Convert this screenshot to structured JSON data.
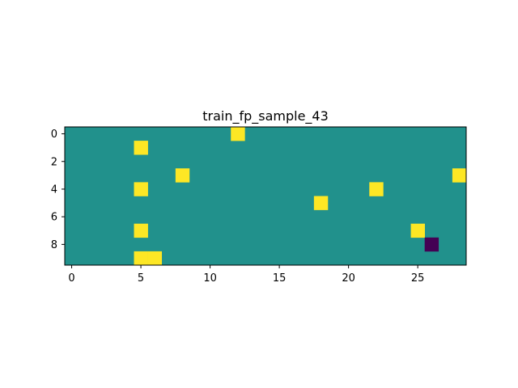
{
  "chart_data": {
    "type": "heatmap",
    "title": "train_fp_sample_43",
    "xlabel": "",
    "ylabel": "",
    "rows": 10,
    "cols": 29,
    "xlim": [
      -0.5,
      28.5
    ],
    "ylim": [
      9.5,
      -0.5
    ],
    "x_ticks": [
      0,
      5,
      10,
      15,
      20,
      25
    ],
    "y_ticks": [
      0,
      2,
      4,
      6,
      8
    ],
    "x_tick_labels": [
      "0",
      "5",
      "10",
      "15",
      "20",
      "25"
    ],
    "y_tick_labels": [
      "0",
      "2",
      "4",
      "6",
      "8"
    ],
    "grid": false,
    "colormap": "viridis",
    "background_value": 0,
    "colors": {
      "-1": "#440154",
      "0": "#21918c",
      "1": "#fde725"
    },
    "cells": [
      {
        "row": 0,
        "col": 12,
        "value": 1
      },
      {
        "row": 1,
        "col": 5,
        "value": 1
      },
      {
        "row": 3,
        "col": 8,
        "value": 1
      },
      {
        "row": 3,
        "col": 28,
        "value": 1
      },
      {
        "row": 4,
        "col": 5,
        "value": 1
      },
      {
        "row": 4,
        "col": 22,
        "value": 1
      },
      {
        "row": 5,
        "col": 18,
        "value": 1
      },
      {
        "row": 7,
        "col": 5,
        "value": 1
      },
      {
        "row": 7,
        "col": 25,
        "value": 1
      },
      {
        "row": 8,
        "col": 26,
        "value": -1
      },
      {
        "row": 9,
        "col": 5,
        "value": 1
      },
      {
        "row": 9,
        "col": 6,
        "value": 1
      }
    ]
  }
}
